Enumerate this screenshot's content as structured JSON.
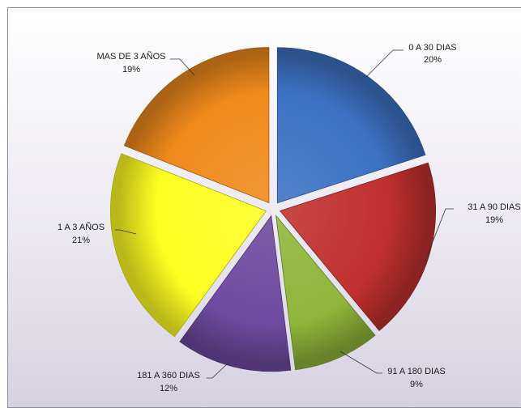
{
  "chart_data": {
    "type": "pie",
    "title": "",
    "slices": [
      {
        "name": "0 A 30 DIAS",
        "value": 20,
        "label": "20%",
        "color": "#3d72c4"
      },
      {
        "name": "31 A 90 DIAS",
        "value": 19,
        "label": "19%",
        "color": "#c0302e"
      },
      {
        "name": "91 A 180 DIAS",
        "value": 9,
        "label": "9%",
        "color": "#8fb63a"
      },
      {
        "name": "181 A 360 DIAS",
        "value": 12,
        "label": "12%",
        "color": "#6e4aa0"
      },
      {
        "name": "1 A 3 AÑOS",
        "value": 21,
        "label": "21%",
        "color": "#ffff22"
      },
      {
        "name": "MAS DE 3 AÑOS",
        "value": 19,
        "label": "19%",
        "color": "#f08a1c"
      }
    ],
    "legend": "none",
    "exploded": true,
    "data_labels": "outside-with-leader-lines"
  }
}
